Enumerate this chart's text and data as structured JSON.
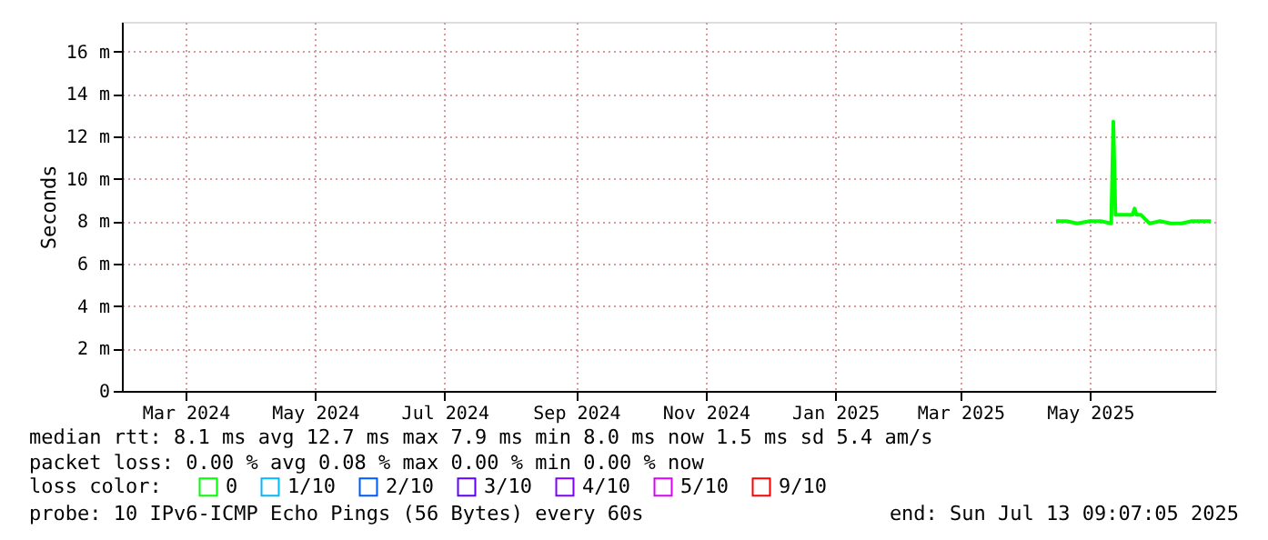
{
  "chart_data": {
    "type": "line",
    "ylabel": "Seconds",
    "legend_title": "loss color:",
    "legend": "bottom",
    "grid": true,
    "marker": "none",
    "line_style": "solid",
    "x": [
      "2025-04-15",
      "2025-04-20",
      "2025-04-25",
      "2025-05-01",
      "2025-05-06",
      "2025-05-11",
      "2025-05-12",
      "2025-05-13",
      "2025-05-17",
      "2025-05-21",
      "2025-05-22",
      "2025-05-23",
      "2025-05-25",
      "2025-05-29",
      "2025-06-03",
      "2025-06-08",
      "2025-06-13",
      "2025-06-18",
      "2025-06-23",
      "2025-06-27"
    ],
    "series": [
      {
        "name": "0",
        "color": "#00ff00",
        "values": [
          8.0,
          8.0,
          7.9,
          8.0,
          8.0,
          7.9,
          12.7,
          8.3,
          8.3,
          8.3,
          8.6,
          8.3,
          8.3,
          7.9,
          8.0,
          7.9,
          7.9,
          8.0,
          8.0,
          8.0
        ]
      },
      {
        "name": "1/10",
        "color": "#00b8ff",
        "values": [
          null,
          null,
          null,
          null,
          null,
          null,
          null,
          null,
          null,
          null,
          null,
          null,
          null,
          null,
          null,
          null,
          null,
          null,
          null,
          null
        ]
      },
      {
        "name": "2/10",
        "color": "#0059ff",
        "values": [
          null,
          null,
          null,
          null,
          null,
          null,
          null,
          null,
          null,
          null,
          null,
          null,
          null,
          null,
          null,
          null,
          null,
          null,
          null,
          null
        ]
      },
      {
        "name": "3/10",
        "color": "#5e00ff",
        "values": [
          null,
          null,
          null,
          null,
          null,
          null,
          null,
          null,
          null,
          null,
          null,
          null,
          null,
          null,
          null,
          null,
          null,
          null,
          null,
          null
        ]
      },
      {
        "name": "4/10",
        "color": "#7e00ff",
        "values": [
          null,
          null,
          null,
          null,
          null,
          null,
          null,
          null,
          null,
          null,
          null,
          null,
          null,
          null,
          null,
          null,
          null,
          null,
          null,
          null
        ]
      },
      {
        "name": "5/10",
        "color": "#dd00ff",
        "values": [
          null,
          null,
          null,
          null,
          null,
          null,
          null,
          null,
          null,
          null,
          null,
          null,
          null,
          null,
          null,
          null,
          null,
          null,
          null,
          null
        ]
      },
      {
        "name": "9/10",
        "color": "#ff0000",
        "values": [
          null,
          null,
          null,
          null,
          null,
          null,
          null,
          null,
          null,
          null,
          null,
          null,
          null,
          null,
          null,
          null,
          null,
          null,
          null,
          null
        ]
      }
    ],
    "xlim": [
      "2024-01-31",
      "2025-06-29"
    ],
    "xticks": [
      {
        "value": "2024-03-01",
        "label": "Mar 2024"
      },
      {
        "value": "2024-05-01",
        "label": "May 2024"
      },
      {
        "value": "2024-07-01",
        "label": "Jul 2024"
      },
      {
        "value": "2024-09-01",
        "label": "Sep 2024"
      },
      {
        "value": "2024-11-01",
        "label": "Nov 2024"
      },
      {
        "value": "2025-01-01",
        "label": "Jan 2025"
      },
      {
        "value": "2025-03-01",
        "label": "Mar 2025"
      },
      {
        "value": "2025-05-01",
        "label": "May 2025"
      }
    ],
    "ylim": [
      0,
      17.4
    ],
    "yticks": [
      0,
      {
        "value": 2,
        "label": "2 m"
      },
      {
        "value": 4,
        "label": "4 m"
      },
      {
        "value": 6,
        "label": "6 m"
      },
      {
        "value": 8,
        "label": "8 m"
      },
      {
        "value": 10,
        "label": "10 m"
      },
      {
        "value": 12,
        "label": "12 m"
      },
      {
        "value": 14,
        "label": "14 m"
      },
      {
        "value": 16,
        "label": "16 m"
      }
    ],
    "annotations": [
      "median rtt:  8.1 ms avg  12.7 ms max  7.9 ms min  8.0 ms now  1.5 ms sd  5.4   am/s",
      "packet loss: 0.00 % avg  0.08 % max  0.00 % min  0.00 % now",
      "probe:       10 IPv6-ICMP Echo Pings (56 Bytes) every 60s",
      "end: Sun Jul 13 09:07:05 2025"
    ]
  }
}
